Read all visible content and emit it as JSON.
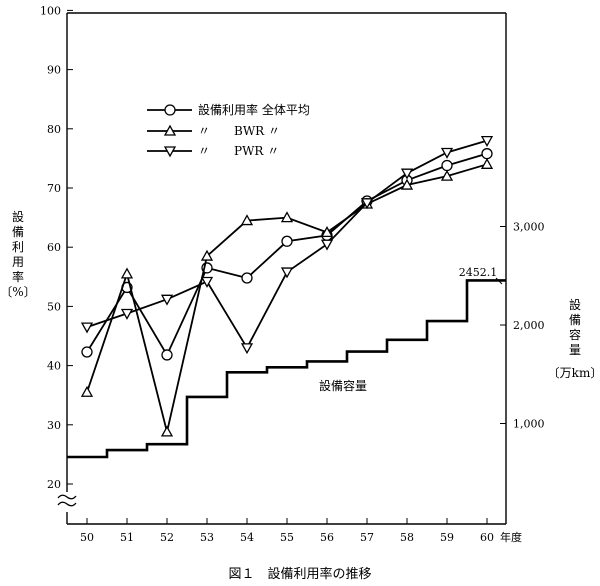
{
  "chart_data": {
    "type": "line",
    "caption": "図１　設備利用率の推移",
    "x": [
      "50",
      "51",
      "52",
      "53",
      "54",
      "55",
      "56",
      "57",
      "58",
      "59",
      "60"
    ],
    "x_suffix": "年度",
    "y_left": {
      "label": [
        "設",
        "備",
        "利",
        "用",
        "率",
        "〔%〕"
      ],
      "ticks": [
        "20",
        "30",
        "40",
        "50",
        "60",
        "70",
        "80",
        "90",
        "100"
      ],
      "ylim": [
        20,
        100
      ],
      "axis_break": true
    },
    "y_right": {
      "label": [
        "設",
        "備",
        "容",
        "量",
        "〔万km〕"
      ],
      "ticks": [
        "1,000",
        "2,000",
        "3,000"
      ],
      "ylim": [
        0,
        3000
      ]
    },
    "legend": [
      {
        "name": "設備利用率 全体平均",
        "marker": "circle"
      },
      {
        "name": "〃　　BWR 〃",
        "marker": "triangle-up"
      },
      {
        "name": "〃　　PWR 〃",
        "marker": "triangle-down"
      }
    ],
    "series": [
      {
        "name": "設備利用率 全体平均",
        "marker": "circle",
        "values": [
          42.3,
          53.2,
          41.8,
          56.5,
          54.8,
          61.0,
          62.0,
          67.8,
          71.3,
          73.8,
          75.8
        ]
      },
      {
        "name": "BWR",
        "marker": "triangle-up",
        "values": [
          35.5,
          55.5,
          28.8,
          58.5,
          64.5,
          65.0,
          62.5,
          67.3,
          70.5,
          72.0,
          74.0
        ]
      },
      {
        "name": "PWR",
        "marker": "triangle-down",
        "values": [
          46.5,
          48.8,
          51.2,
          54.2,
          43.0,
          55.8,
          60.5,
          67.5,
          72.5,
          76.0,
          78.0
        ]
      }
    ],
    "capacity": {
      "name": "設備容量",
      "values": [
        660,
        730,
        790,
        1270,
        1520,
        1570,
        1630,
        1730,
        1850,
        2040,
        2452.1
      ],
      "annotation": "2452.1"
    }
  }
}
